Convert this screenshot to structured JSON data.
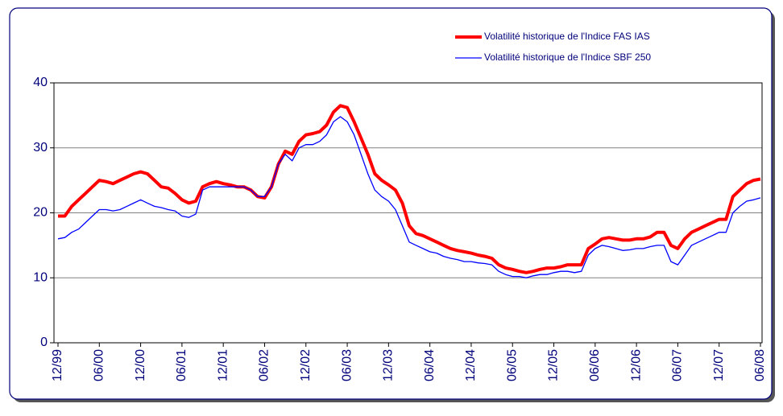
{
  "chart_data": {
    "type": "line",
    "categories": [
      "12/99",
      null,
      null,
      null,
      null,
      null,
      "06/00",
      null,
      null,
      null,
      null,
      null,
      "12/00",
      null,
      null,
      null,
      null,
      null,
      "06/01",
      null,
      null,
      null,
      null,
      null,
      "12/01",
      null,
      null,
      null,
      null,
      null,
      "06/02",
      null,
      null,
      null,
      null,
      null,
      "12/02",
      null,
      null,
      null,
      null,
      null,
      "06/03",
      null,
      null,
      null,
      null,
      null,
      "12/03",
      null,
      null,
      null,
      null,
      null,
      "06/04",
      null,
      null,
      null,
      null,
      null,
      "12/04",
      null,
      null,
      null,
      null,
      null,
      "06/05",
      null,
      null,
      null,
      null,
      null,
      "12/05",
      null,
      null,
      null,
      null,
      null,
      "06/06",
      null,
      null,
      null,
      null,
      null,
      "12/06",
      null,
      null,
      null,
      null,
      null,
      "06/07",
      null,
      null,
      null,
      null,
      null,
      "12/07",
      null,
      null,
      null,
      null,
      null,
      "06/08"
    ],
    "series": [
      {
        "name": "Volatilité historique de l'Indice FAS IAS",
        "color": "#ff0000",
        "width": 4,
        "values": [
          19.5,
          19.5,
          21,
          22,
          23,
          24,
          25,
          24.8,
          24.5,
          25,
          25.5,
          26,
          26.3,
          26,
          25,
          24,
          23.8,
          23,
          22,
          21.5,
          21.8,
          24,
          24.5,
          24.8,
          24.5,
          24.3,
          24,
          24,
          23.5,
          22.5,
          22.3,
          24,
          27.5,
          29.5,
          29,
          31,
          32,
          32.2,
          32.5,
          33.5,
          35.5,
          36.5,
          36.2,
          34,
          31.5,
          29,
          26,
          25,
          24.3,
          23.5,
          21.5,
          18,
          16.8,
          16.5,
          16,
          15.5,
          15,
          14.5,
          14.2,
          14,
          13.8,
          13.5,
          13.3,
          13,
          12,
          11.5,
          11.3,
          11,
          10.8,
          11,
          11.3,
          11.5,
          11.5,
          11.7,
          12,
          12,
          12,
          14.5,
          15.2,
          16,
          16.2,
          16,
          15.8,
          15.8,
          16,
          16,
          16.3,
          17,
          17,
          15,
          14.5,
          16,
          17,
          17.5,
          18,
          18.5,
          19,
          19,
          22.5,
          23.5,
          24.5,
          25,
          25.2
        ]
      },
      {
        "name": "Volatilité historique de l'Indice SBF 250",
        "color": "#0000ff",
        "width": 1.3,
        "values": [
          16,
          16.2,
          17,
          17.5,
          18.5,
          19.5,
          20.5,
          20.5,
          20.3,
          20.5,
          21,
          21.5,
          22,
          21.5,
          21,
          20.8,
          20.5,
          20.3,
          19.5,
          19.3,
          19.8,
          23.5,
          24,
          24,
          24,
          24,
          24,
          24,
          23.5,
          22.5,
          22.5,
          24,
          27.5,
          29,
          28,
          30,
          30.5,
          30.5,
          31,
          32,
          34,
          34.8,
          34,
          32,
          29,
          26,
          23.5,
          22.5,
          21.8,
          20.5,
          18,
          15.5,
          15,
          14.5,
          14,
          13.8,
          13.3,
          13,
          12.8,
          12.5,
          12.5,
          12.3,
          12.2,
          12,
          11,
          10.5,
          10.2,
          10.2,
          10,
          10.3,
          10.5,
          10.5,
          10.8,
          11,
          11,
          10.8,
          11,
          13.5,
          14.5,
          15,
          14.8,
          14.5,
          14.2,
          14.3,
          14.5,
          14.5,
          14.8,
          15,
          15,
          12.5,
          12,
          13.5,
          15,
          15.5,
          16,
          16.5,
          17,
          17,
          20,
          21,
          21.8,
          22,
          22.3
        ]
      }
    ],
    "ylim": [
      0,
      40
    ],
    "yticks": [
      0,
      10,
      20,
      30,
      40
    ],
    "grid": true,
    "legend": "top-right"
  }
}
